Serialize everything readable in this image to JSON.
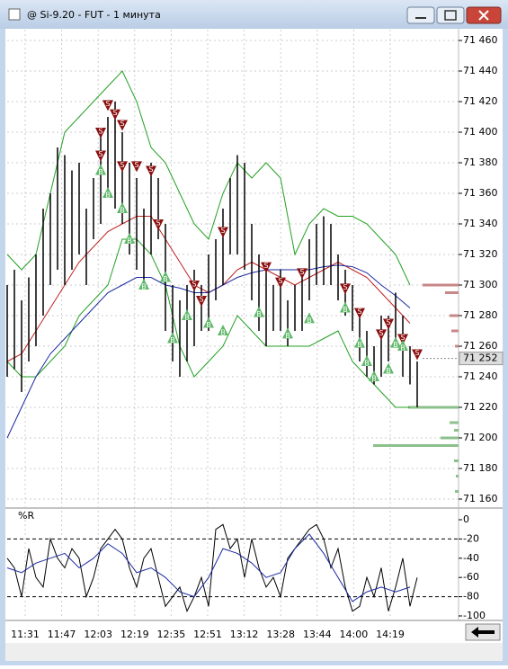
{
  "window": {
    "title": "@ Si-9.20 - FUT - 1 минута"
  },
  "chart_data": [
    {
      "type": "range-bar",
      "ylim": [
        71160,
        71460
      ],
      "yticks": [
        {
          "value": 71460,
          "label": "71 460"
        },
        {
          "value": 71440,
          "label": "71 440"
        },
        {
          "value": 71420,
          "label": "71 420"
        },
        {
          "value": 71400,
          "label": "71 400"
        },
        {
          "value": 71380,
          "label": "71 380"
        },
        {
          "value": 71360,
          "label": "71 360"
        },
        {
          "value": 71340,
          "label": "71 340"
        },
        {
          "value": 71320,
          "label": "71 320"
        },
        {
          "value": 71300,
          "label": "71 300"
        },
        {
          "value": 71280,
          "label": "71 280"
        },
        {
          "value": 71260,
          "label": "71 260"
        },
        {
          "value": 71240,
          "label": "71 240"
        },
        {
          "value": 71220,
          "label": "71 220"
        },
        {
          "value": 71200,
          "label": "71 200"
        },
        {
          "value": 71180,
          "label": "71 180"
        },
        {
          "value": 71160,
          "label": "71 160"
        }
      ],
      "grid": true,
      "bar_color": "#000000",
      "high": [
        71300,
        71310,
        71290,
        71305,
        71320,
        71350,
        71360,
        71390,
        71385,
        71375,
        71380,
        71350,
        71370,
        71400,
        71410,
        71420,
        71400,
        71380,
        71370,
        71350,
        71380,
        71370,
        71340,
        71300,
        71290,
        71300,
        71310,
        71300,
        71320,
        71330,
        71350,
        71370,
        71385,
        71380,
        71340,
        71320,
        71310,
        71300,
        71310,
        71290,
        71300,
        71310,
        71330,
        71340,
        71345,
        71340,
        71320,
        71310,
        71300,
        71280,
        71270,
        71260,
        71280,
        71280,
        71295,
        71280,
        71260,
        71250
      ],
      "low": [
        71240,
        71245,
        71230,
        71250,
        71260,
        71280,
        71300,
        71310,
        71300,
        71310,
        71320,
        71300,
        71330,
        71340,
        71360,
        71350,
        71340,
        71320,
        71310,
        71300,
        71320,
        71330,
        71270,
        71250,
        71240,
        71250,
        71260,
        71270,
        71270,
        71290,
        71300,
        71320,
        71320,
        71310,
        71290,
        71270,
        71260,
        71270,
        71270,
        71260,
        71270,
        71270,
        71290,
        71300,
        71300,
        71300,
        71290,
        71280,
        71270,
        71250,
        71240,
        71235,
        71240,
        71250,
        71260,
        71240,
        71235,
        71220
      ],
      "lines": [
        {
          "name": null,
          "color": "#22a022",
          "values": [
            71320,
            71310,
            71320,
            71360,
            71400,
            71410,
            71420,
            71430,
            71440,
            71420,
            71390,
            71380,
            71360,
            71340,
            71330,
            71360,
            71380,
            71370,
            71380,
            71370,
            71320,
            71340,
            71350,
            71345,
            71345,
            71340,
            71330,
            71320,
            71300
          ]
        },
        {
          "name": null,
          "color": "#22a022",
          "values": [
            71250,
            71240,
            71240,
            71250,
            71260,
            71280,
            71290,
            71300,
            71330,
            71330,
            71320,
            71300,
            71260,
            71240,
            71250,
            71260,
            71280,
            71270,
            71260,
            71260,
            71260,
            71260,
            71265,
            71270,
            71250,
            71240,
            71230,
            71220,
            71220
          ]
        },
        {
          "name": null,
          "color": "#c02020",
          "values": [
            71250,
            71255,
            71270,
            71285,
            71300,
            71315,
            71325,
            71335,
            71340,
            71345,
            71345,
            71330,
            71315,
            71300,
            71295,
            71300,
            71310,
            71315,
            71310,
            71305,
            71300,
            71305,
            71310,
            71315,
            71310,
            71305,
            71295,
            71285,
            71275
          ]
        },
        {
          "name": null,
          "color": "#1a2aa0",
          "values": [
            71200,
            71220,
            71240,
            71255,
            71265,
            71275,
            71285,
            71295,
            71300,
            71305,
            71305,
            71300,
            71298,
            71295,
            71295,
            71300,
            71305,
            71308,
            71310,
            71310,
            71310,
            71310,
            71312,
            71313,
            71312,
            71308,
            71300,
            71293,
            71285
          ]
        }
      ],
      "sell_label": "S",
      "buy_label": "B",
      "sell_color": "#8b1010",
      "buy_color": "#5fb86a",
      "sells": {
        "x": [
          14,
          15,
          13,
          16,
          13,
          18,
          20,
          16,
          21,
          26,
          27,
          30,
          36,
          38,
          41,
          47,
          49,
          52,
          55,
          57,
          53
        ],
        "price": [
          71418,
          71412,
          71400,
          71405,
          71385,
          71378,
          71375,
          71378,
          71340,
          71300,
          71290,
          71335,
          71312,
          71302,
          71308,
          71298,
          71282,
          71268,
          71265,
          71255,
          71275
        ]
      },
      "buys": {
        "x": [
          13,
          14,
          16,
          17,
          19,
          22,
          23,
          25,
          28,
          30,
          35,
          39,
          42,
          47,
          49,
          50,
          51,
          54,
          53,
          55
        ],
        "price": [
          71375,
          71360,
          71350,
          71330,
          71300,
          71305,
          71265,
          71280,
          71275,
          71270,
          71282,
          71268,
          71278,
          71285,
          71262,
          71250,
          71240,
          71262,
          71245,
          71260
        ]
      },
      "profile": {
        "prices": [
          71300,
          71295,
          71280,
          71270,
          71260,
          71220,
          71210,
          71205,
          71200,
          71195,
          71185,
          71175,
          71165
        ],
        "sizes": [
          40,
          15,
          10,
          8,
          4,
          56,
          10,
          5,
          20,
          95,
          5,
          3,
          4
        ],
        "color_above": "#c88888",
        "color_below": "#8cc08c"
      },
      "last": {
        "value": 71252,
        "label": "71 252"
      }
    },
    {
      "type": "line",
      "title": "%R",
      "ylim": [
        -100,
        0
      ],
      "yticks": [
        0,
        -20,
        -40,
        -60,
        -80,
        -100
      ],
      "levels": [
        -20,
        -80
      ],
      "series": [
        {
          "name": null,
          "color": "#000000",
          "values": [
            -40,
            -50,
            -80,
            -30,
            -60,
            -70,
            -20,
            -40,
            -50,
            -30,
            -40,
            -80,
            -60,
            -30,
            -20,
            -10,
            -20,
            -50,
            -70,
            -40,
            -30,
            -60,
            -90,
            -80,
            -70,
            -95,
            -80,
            -60,
            -90,
            -10,
            -5,
            -30,
            -20,
            -60,
            -20,
            -50,
            -70,
            -60,
            -80,
            -40,
            -30,
            -20,
            -10,
            -5,
            -20,
            -50,
            -30,
            -70,
            -95,
            -90,
            -60,
            -80,
            -50,
            -95,
            -70,
            -40,
            -90,
            -60
          ]
        },
        {
          "name": null,
          "color": "#1a2aa0",
          "values": [
            -50,
            -55,
            -45,
            -40,
            -35,
            -50,
            -40,
            -25,
            -35,
            -55,
            -50,
            -60,
            -75,
            -80,
            -60,
            -30,
            -35,
            -45,
            -60,
            -55,
            -30,
            -15,
            -35,
            -60,
            -85,
            -75,
            -70,
            -75,
            -70
          ]
        }
      ],
      "xtick_labels": [
        "11:31",
        "11:47",
        "12:03",
        "12:19",
        "12:35",
        "12:51",
        "13:12",
        "13:28",
        "13:44",
        "14:00",
        "14:19"
      ]
    }
  ]
}
